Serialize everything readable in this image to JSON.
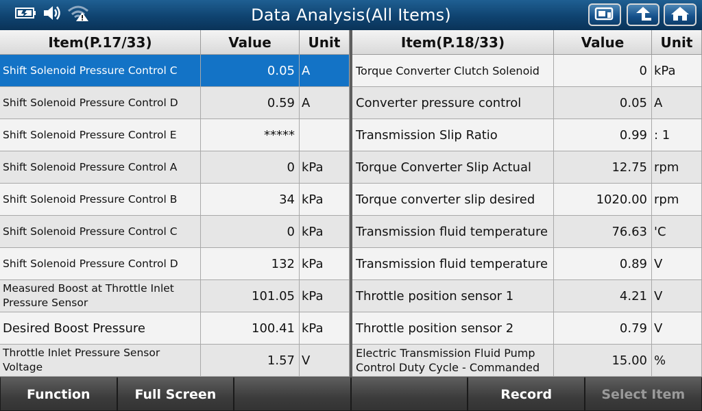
{
  "header": {
    "title": "Data Analysis(All Items)",
    "status_icons": [
      "battery-icon",
      "speaker-icon",
      "wifi-warning-icon"
    ],
    "buttons": [
      "screenshot-icon",
      "back-up-arrow-icon",
      "home-icon"
    ]
  },
  "left_table": {
    "headers": {
      "item": "Item(P.17/33)",
      "value": "Value",
      "unit": "Unit"
    },
    "rows": [
      {
        "item": "Shift Solenoid Pressure Control C",
        "value": "0.05",
        "unit": "A"
      },
      {
        "item": "Shift Solenoid Pressure Control D",
        "value": "0.59",
        "unit": "A"
      },
      {
        "item": "Shift Solenoid Pressure Control E",
        "value": "*****",
        "unit": ""
      },
      {
        "item": "Shift Solenoid Pressure Control A",
        "value": "0",
        "unit": "kPa"
      },
      {
        "item": "Shift Solenoid Pressure Control B",
        "value": "34",
        "unit": "kPa"
      },
      {
        "item": "Shift Solenoid Pressure Control C",
        "value": "0",
        "unit": "kPa"
      },
      {
        "item": "Shift Solenoid Pressure Control D",
        "value": "132",
        "unit": "kPa"
      },
      {
        "item": "Measured Boost at Throttle Inlet Pressure Sensor",
        "value": "101.05",
        "unit": "kPa"
      },
      {
        "item": "Desired Boost Pressure",
        "value": "100.41",
        "unit": "kPa"
      },
      {
        "item": "Throttle Inlet Pressure Sensor Voltage",
        "value": "1.57",
        "unit": "V"
      }
    ]
  },
  "right_table": {
    "headers": {
      "item": "Item(P.18/33)",
      "value": "Value",
      "unit": "Unit"
    },
    "rows": [
      {
        "item": "Torque Converter Clutch Solenoid",
        "value": "0",
        "unit": "kPa"
      },
      {
        "item": "Converter pressure control",
        "value": "0.05",
        "unit": "A"
      },
      {
        "item": "Transmission Slip Ratio",
        "value": "0.99",
        "unit": ": 1"
      },
      {
        "item": "Torque Converter Slip Actual",
        "value": "12.75",
        "unit": "rpm"
      },
      {
        "item": "Torque converter slip desired",
        "value": "1020.00",
        "unit": "rpm"
      },
      {
        "item": "Transmission fluid temperature",
        "value": "76.63",
        "unit": "'C"
      },
      {
        "item": "Transmission fluid temperature",
        "value": "0.89",
        "unit": "V"
      },
      {
        "item": "Throttle position sensor 1",
        "value": "4.21",
        "unit": "V"
      },
      {
        "item": "Throttle position sensor 2",
        "value": "0.79",
        "unit": "V"
      },
      {
        "item": "Electric Transmission Fluid Pump Control Duty Cycle - Commanded",
        "value": "15.00",
        "unit": "%"
      }
    ]
  },
  "toolbar": {
    "function": "Function",
    "full_screen": "Full Screen",
    "blank_1": "",
    "blank_2": "",
    "record": "Record",
    "select_item": "Select Item"
  },
  "colors": {
    "header_bg": "#0f4370",
    "selected_row": "#1373c6",
    "toolbar_bg": "#3c3c3c"
  }
}
